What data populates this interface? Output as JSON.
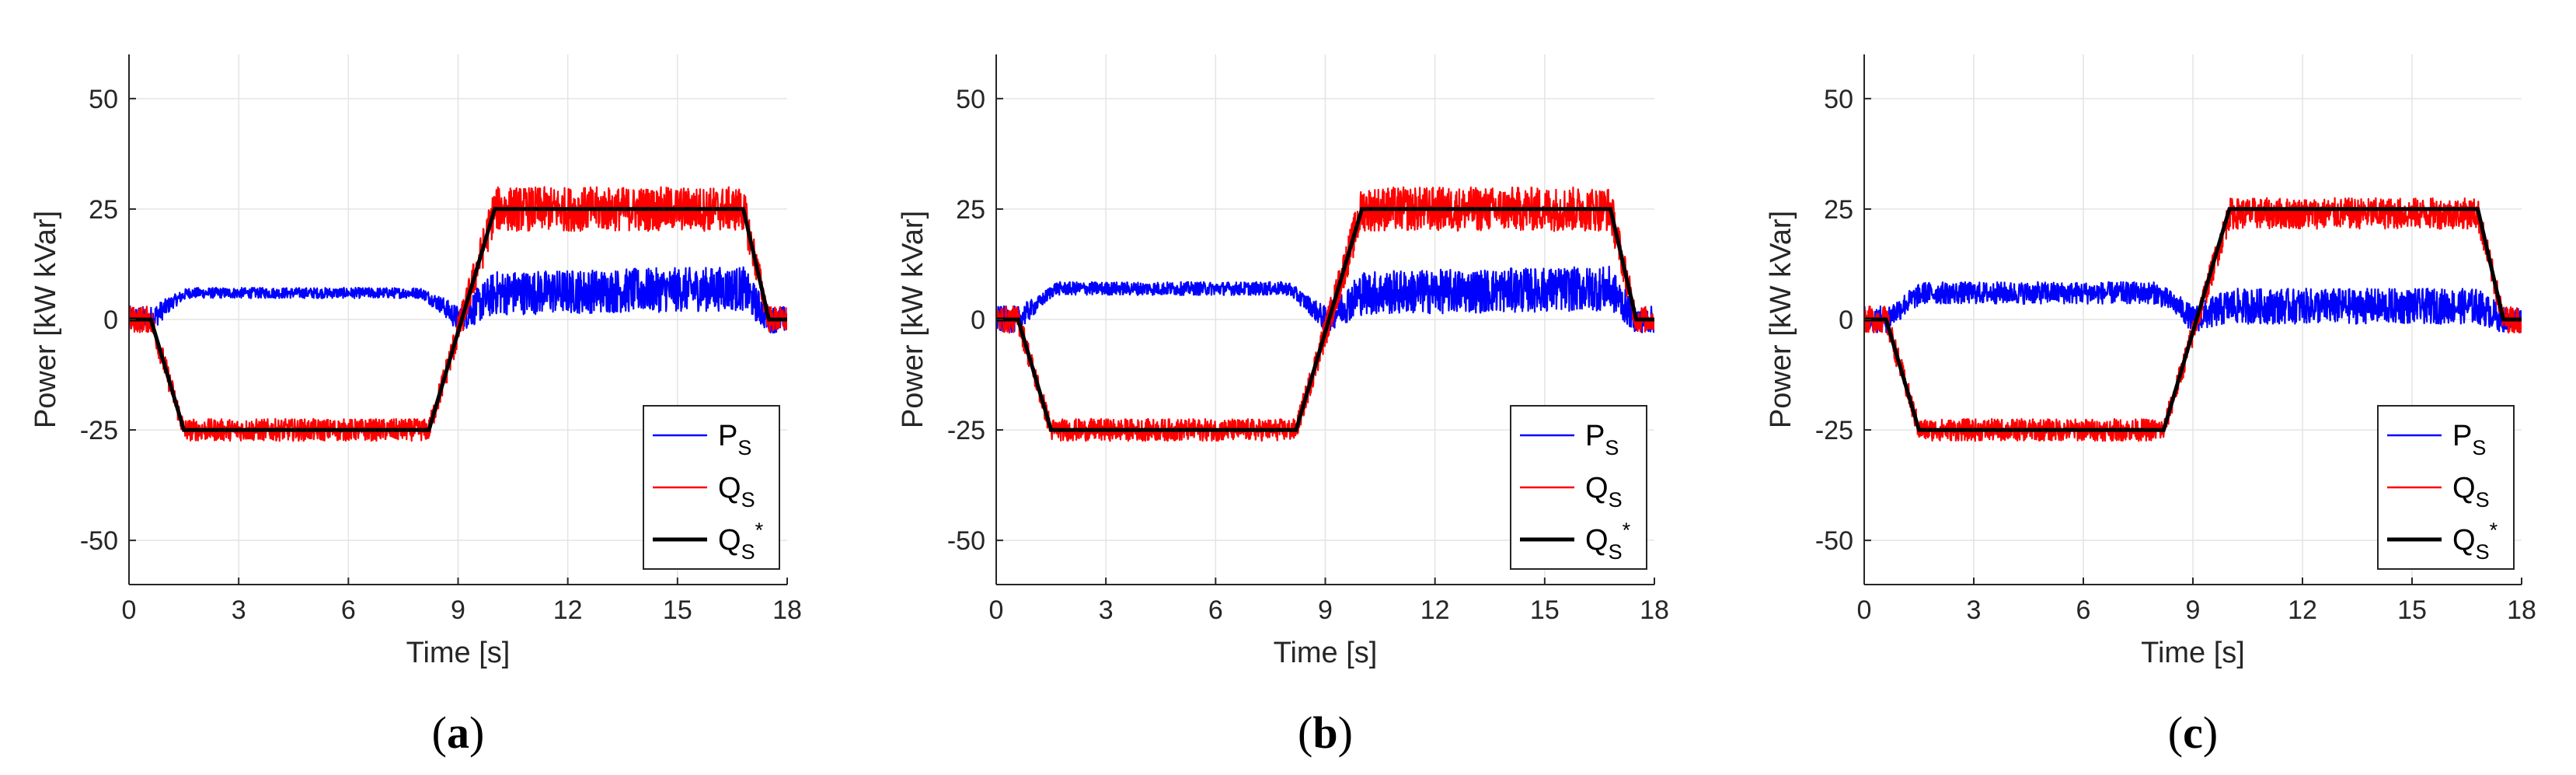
{
  "chart_data": [
    {
      "type": "line",
      "panel_label": {
        "open": "(",
        "letter": "a",
        "close": ")"
      },
      "xlabel": "Time [s]",
      "ylabel": "Power [kW kVar]",
      "xlim": [
        0,
        18
      ],
      "ylim": [
        -60,
        60
      ],
      "xticks": [
        0,
        3,
        6,
        9,
        12,
        15,
        18
      ],
      "yticks": [
        -50,
        -25,
        0,
        25,
        50
      ],
      "grid": true,
      "legend_position": "bottom-right",
      "legend": [
        {
          "base": "P",
          "sub": "S",
          "sup": "",
          "color": "#0000ff"
        },
        {
          "base": "Q",
          "sub": "S",
          "sup": "",
          "color": "#ff0000"
        },
        {
          "base": "Q",
          "sub": "S",
          "sup": "*",
          "color": "#000000"
        }
      ],
      "series": [
        {
          "name": "P_S",
          "color": "#0000ff",
          "x": [
            0,
            0.6,
            1.2,
            1.6,
            8.0,
            8.6,
            9.0,
            10.0,
            16.8,
            17.5,
            18.0
          ],
          "y": [
            0,
            0,
            4,
            6,
            6,
            3,
            0,
            6,
            7,
            0,
            0
          ],
          "noise_amplitude": [
            3,
            3,
            1.5,
            1.2,
            1.2,
            2,
            3,
            5,
            5,
            3,
            3
          ]
        },
        {
          "name": "Q_S",
          "color": "#ff0000",
          "x": [
            0,
            0.6,
            1.5,
            8.2,
            10.0,
            16.8,
            17.5,
            18.0
          ],
          "y": [
            0,
            0,
            -25,
            -25,
            25,
            25,
            0,
            0
          ],
          "noise_amplitude": [
            3,
            3,
            2.5,
            2.5,
            5,
            5,
            3,
            3
          ]
        },
        {
          "name": "Q_S*",
          "color": "#000000",
          "x": [
            0,
            0.6,
            1.5,
            8.2,
            10.0,
            16.8,
            17.5,
            18.0
          ],
          "y": [
            0,
            0,
            -25,
            -25,
            25,
            25,
            0,
            0
          ],
          "noise_amplitude": [
            0,
            0,
            0,
            0,
            0,
            0,
            0,
            0
          ]
        }
      ]
    },
    {
      "type": "line",
      "panel_label": {
        "open": "(",
        "letter": "b",
        "close": ")"
      },
      "xlabel": "Time [s]",
      "ylabel": "Power [kW kVar]",
      "xlim": [
        0,
        18
      ],
      "ylim": [
        -60,
        60
      ],
      "xticks": [
        0,
        3,
        6,
        9,
        12,
        15,
        18
      ],
      "yticks": [
        -50,
        -25,
        0,
        25,
        50
      ],
      "grid": true,
      "legend_position": "bottom-right",
      "legend": [
        {
          "base": "P",
          "sub": "S",
          "sup": "",
          "color": "#0000ff"
        },
        {
          "base": "Q",
          "sub": "S",
          "sup": "",
          "color": "#ff0000"
        },
        {
          "base": "Q",
          "sub": "S",
          "sup": "*",
          "color": "#000000"
        }
      ],
      "series": [
        {
          "name": "P_S",
          "color": "#0000ff",
          "x": [
            0,
            0.6,
            1.2,
            1.6,
            8.0,
            8.6,
            9.0,
            10.0,
            16.8,
            17.5,
            18.0
          ],
          "y": [
            0,
            0,
            4,
            7,
            7,
            3,
            0,
            6,
            7,
            0,
            0
          ],
          "noise_amplitude": [
            3,
            3,
            1.5,
            1.5,
            1.5,
            2,
            3,
            5,
            5,
            3,
            3
          ]
        },
        {
          "name": "Q_S",
          "color": "#ff0000",
          "x": [
            0,
            0.6,
            1.5,
            8.2,
            10.0,
            16.8,
            17.5,
            18.0
          ],
          "y": [
            0,
            0,
            -25,
            -25,
            25,
            25,
            0,
            0
          ],
          "noise_amplitude": [
            3,
            3,
            2.5,
            2.5,
            5,
            5,
            3,
            3
          ]
        },
        {
          "name": "Q_S*",
          "color": "#000000",
          "x": [
            0,
            0.6,
            1.5,
            8.2,
            10.0,
            16.8,
            17.5,
            18.0
          ],
          "y": [
            0,
            0,
            -25,
            -25,
            25,
            25,
            0,
            0
          ],
          "noise_amplitude": [
            0,
            0,
            0,
            0,
            0,
            0,
            0,
            0
          ]
        }
      ]
    },
    {
      "type": "line",
      "panel_label": {
        "open": "(",
        "letter": "c",
        "close": ")"
      },
      "xlabel": "Time [s]",
      "ylabel": "Power [kW kVar]",
      "xlim": [
        0,
        18
      ],
      "ylim": [
        -60,
        60
      ],
      "xticks": [
        0,
        3,
        6,
        9,
        12,
        15,
        18
      ],
      "yticks": [
        -50,
        -25,
        0,
        25,
        50
      ],
      "grid": true,
      "legend_position": "bottom-right",
      "legend": [
        {
          "base": "P",
          "sub": "S",
          "sup": "",
          "color": "#0000ff"
        },
        {
          "base": "Q",
          "sub": "S",
          "sup": "",
          "color": "#ff0000"
        },
        {
          "base": "Q",
          "sub": "S",
          "sup": "*",
          "color": "#000000"
        }
      ],
      "series": [
        {
          "name": "P_S",
          "color": "#0000ff",
          "x": [
            0,
            0.6,
            1.2,
            1.6,
            8.0,
            8.6,
            9.0,
            10.0,
            16.8,
            17.5,
            18.0
          ],
          "y": [
            0,
            0,
            4,
            6,
            6,
            3,
            0,
            3,
            3,
            0,
            0
          ],
          "noise_amplitude": [
            3,
            3,
            2.5,
            2.5,
            2.5,
            2.5,
            3,
            4,
            4,
            3,
            3
          ]
        },
        {
          "name": "Q_S",
          "color": "#ff0000",
          "x": [
            0,
            0.6,
            1.5,
            8.2,
            10.0,
            16.8,
            17.5,
            18.0
          ],
          "y": [
            0,
            0,
            -25,
            -25,
            24,
            24,
            0,
            0
          ],
          "noise_amplitude": [
            3,
            3,
            2.5,
            2.5,
            3.5,
            3.5,
            3,
            3
          ]
        },
        {
          "name": "Q_S*",
          "color": "#000000",
          "x": [
            0,
            0.6,
            1.5,
            8.2,
            10.0,
            16.8,
            17.5,
            18.0
          ],
          "y": [
            0,
            0,
            -25,
            -25,
            25,
            25,
            0,
            0
          ],
          "noise_amplitude": [
            0,
            0,
            0,
            0,
            0,
            0,
            0,
            0
          ]
        }
      ]
    }
  ]
}
